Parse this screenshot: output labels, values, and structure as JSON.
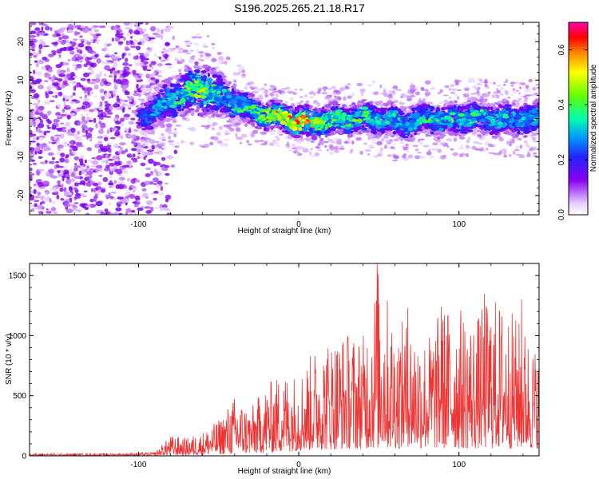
{
  "title": "S196.2025.265.21.18.R17",
  "chart_data": [
    {
      "type": "heatmap",
      "name": "spectrogram",
      "xlabel": "Height of straight line (km)",
      "ylabel": "Frequency (Hz)",
      "xlim": [
        -168,
        150
      ],
      "ylim": [
        -25,
        25
      ],
      "xticks": [
        -100,
        0,
        100
      ],
      "yticks": [
        -20,
        -10,
        0,
        10,
        20
      ],
      "colorbar": {
        "label": "Normalized spectral amplitude",
        "range": [
          0,
          0.7
        ],
        "ticks": [
          0.0,
          0.2,
          0.4,
          0.6
        ],
        "tick_labels": [
          "0.0",
          "0.2",
          "0.4",
          "0.6"
        ]
      },
      "ridge": {
        "description": "signal band center frequency vs height",
        "x": [
          -100,
          -90,
          -80,
          -70,
          -60,
          -50,
          -40,
          -30,
          -20,
          -10,
          0,
          10,
          20,
          30,
          40,
          50,
          60,
          70,
          80,
          90,
          100,
          110,
          120,
          130,
          140,
          150
        ],
        "center": [
          0,
          2,
          5,
          7,
          8,
          6,
          4,
          2,
          1,
          0.5,
          -1,
          -1,
          -0.5,
          0,
          0,
          0,
          -1,
          -1,
          0,
          -0.5,
          0,
          0.5,
          0,
          0,
          0,
          0
        ],
        "halfwidth": [
          4,
          5,
          6,
          6,
          7,
          6,
          5,
          4,
          3.5,
          3.5,
          4,
          4,
          4,
          4,
          4.5,
          4.5,
          4.5,
          4.5,
          4.5,
          4.5,
          4.5,
          4.5,
          4.5,
          4.5,
          4.5,
          4.5
        ],
        "peak_amplitude": [
          0.2,
          0.3,
          0.35,
          0.4,
          0.45,
          0.35,
          0.35,
          0.4,
          0.5,
          0.6,
          0.6,
          0.55,
          0.45,
          0.4,
          0.4,
          0.35,
          0.35,
          0.35,
          0.35,
          0.35,
          0.35,
          0.35,
          0.35,
          0.35,
          0.35,
          0.35
        ]
      },
      "noise_region": {
        "x_range": [
          -168,
          -95
        ],
        "amplitude": 0.1
      }
    },
    {
      "type": "line",
      "name": "snr",
      "xlabel": "Height of straight line (km)",
      "ylabel": "SNR (10 * v/v)",
      "xlim": [
        -168,
        150
      ],
      "ylim": [
        0,
        1600
      ],
      "xticks": [
        -100,
        0,
        100
      ],
      "yticks": [
        0,
        500,
        1000,
        1500
      ],
      "color": "#ee3333",
      "envelope": {
        "x": [
          -168,
          -120,
          -90,
          -80,
          -70,
          -60,
          -50,
          -40,
          -30,
          -20,
          -10,
          0,
          10,
          20,
          30,
          40,
          50,
          60,
          70,
          80,
          90,
          100,
          110,
          120,
          130,
          140,
          150
        ],
        "upper": [
          20,
          20,
          30,
          170,
          150,
          200,
          300,
          500,
          400,
          600,
          700,
          700,
          900,
          1000,
          1050,
          1000,
          1600,
          1100,
          1150,
          1000,
          1250,
          1250,
          1150,
          1350,
          1250,
          1100,
          850
        ],
        "lower": [
          5,
          5,
          5,
          10,
          10,
          20,
          30,
          40,
          50,
          60,
          80,
          100,
          120,
          130,
          140,
          140,
          150,
          150,
          150,
          150,
          150,
          150,
          150,
          150,
          150,
          150,
          150
        ]
      },
      "peaks": [
        {
          "x": 49,
          "y": 1600
        },
        {
          "x": 68,
          "y": 1230
        },
        {
          "x": 116,
          "y": 1350
        },
        {
          "x": 139,
          "y": 1300
        },
        {
          "x": 89,
          "y": 1240
        }
      ]
    }
  ]
}
